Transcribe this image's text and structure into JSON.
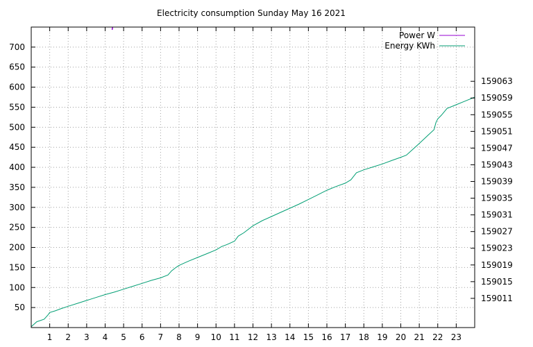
{
  "chart_data": {
    "type": "line",
    "title": "Electricity consumption Sunday May 16 2021",
    "xlabel": "",
    "ylabel": "",
    "y2label": "",
    "grid": true,
    "legend_position": "top-right",
    "xlim": [
      0,
      24
    ],
    "x_ticks": [
      1,
      2,
      3,
      4,
      5,
      6,
      7,
      8,
      9,
      10,
      11,
      12,
      13,
      14,
      15,
      16,
      17,
      18,
      19,
      20,
      21,
      22,
      23
    ],
    "ylim": [
      0,
      750
    ],
    "y_ticks": [
      50,
      100,
      150,
      200,
      250,
      300,
      350,
      400,
      450,
      500,
      550,
      600,
      650,
      700
    ],
    "y2lim": [
      159004,
      159076
    ],
    "y2_ticks": [
      159011,
      159015,
      159019,
      159023,
      159027,
      159031,
      159035,
      159039,
      159043,
      159047,
      159051,
      159055,
      159059,
      159063
    ],
    "series": [
      {
        "name": "Power W",
        "axis": "left",
        "color": "#9400d3",
        "x": [
          4.38,
          4.4
        ],
        "y": [
          743,
          752
        ]
      },
      {
        "name": "Energy KWh",
        "axis": "right",
        "color": "#009e73",
        "x": [
          0.0,
          0.3,
          0.7,
          0.9,
          1.0,
          1.3,
          1.6,
          2.0,
          2.5,
          3.0,
          3.5,
          4.0,
          4.5,
          5.0,
          5.5,
          6.0,
          6.5,
          7.0,
          7.4,
          7.6,
          7.8,
          8.0,
          8.5,
          9.0,
          9.5,
          10.0,
          10.3,
          10.6,
          11.0,
          11.2,
          11.5,
          12.0,
          12.5,
          13.0,
          13.5,
          14.0,
          14.5,
          15.0,
          15.5,
          16.0,
          16.5,
          17.0,
          17.3,
          17.6,
          18.0,
          18.5,
          19.0,
          19.5,
          20.0,
          20.3,
          20.6,
          21.0,
          21.5,
          21.8,
          21.9,
          22.0,
          22.2,
          22.5,
          23.0,
          23.5,
          24.0
        ],
        "y": [
          159004.2,
          159005.4,
          159006.0,
          159007.0,
          159007.6,
          159008.0,
          159008.5,
          159009.1,
          159009.8,
          159010.5,
          159011.2,
          159011.9,
          159012.5,
          159013.2,
          159013.9,
          159014.6,
          159015.3,
          159015.9,
          159016.6,
          159017.6,
          159018.3,
          159018.9,
          159019.9,
          159020.8,
          159021.7,
          159022.6,
          159023.4,
          159023.9,
          159024.7,
          159025.9,
          159026.7,
          159028.4,
          159029.6,
          159030.6,
          159031.6,
          159032.6,
          159033.6,
          159034.7,
          159035.8,
          159036.9,
          159037.8,
          159038.6,
          159039.4,
          159041.1,
          159041.8,
          159042.5,
          159043.2,
          159044.0,
          159044.8,
          159045.3,
          159046.5,
          159048.1,
          159050.2,
          159051.4,
          159053.1,
          159054.0,
          159054.9,
          159056.5,
          159057.4,
          159058.3,
          159059.2
        ]
      }
    ]
  }
}
